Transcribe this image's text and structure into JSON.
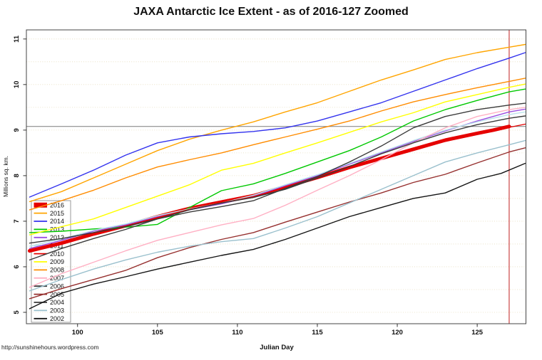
{
  "footer": {
    "url": "http://sunshinehours.wordpress.com"
  },
  "chart_data": {
    "type": "line",
    "title": "JAXA Antarctic Ice Extent - as of 2016-127 Zoomed",
    "xlabel": "Julian Day",
    "ylabel": "Millions sq. km.",
    "xlim": [
      96.8,
      128.05
    ],
    "ylim": [
      4.75,
      11.2
    ],
    "x_ticks": [
      100,
      105,
      110,
      115,
      120,
      125
    ],
    "y_ticks": [
      5,
      6,
      7,
      8,
      9,
      10,
      11
    ],
    "grid": {
      "start": 5,
      "end": 11,
      "step": 0.5,
      "color": "#E6DDBE",
      "style": "dotted",
      "orientation": "horizontal"
    },
    "reference_lines": {
      "horizontal": {
        "value": 9.08,
        "color": "#7A7A7A",
        "meaning": "current 2016 extent"
      },
      "vertical": {
        "value": 127,
        "color": "#CC4444",
        "meaning": "as-of Julian day 127"
      }
    },
    "legend": {
      "position": "left-bottom",
      "box": {
        "x": 44,
        "y": 282,
        "w": 55,
        "h": 171
      },
      "entries": [
        "2016",
        "2015",
        "2014",
        "2013",
        "2012",
        "2011",
        "2010",
        "2009",
        "2008",
        "2007",
        "2006",
        "2005",
        "2004",
        "2003",
        "2002"
      ]
    },
    "series": [
      {
        "name": "2016",
        "color": "#E50000",
        "width": 5,
        "points": [
          [
            97,
            6.35
          ],
          [
            99,
            6.52
          ],
          [
            101,
            6.72
          ],
          [
            103,
            6.9
          ],
          [
            105,
            7.1
          ],
          [
            107,
            7.28
          ],
          [
            109,
            7.42
          ],
          [
            111,
            7.56
          ],
          [
            113,
            7.76
          ],
          [
            115,
            7.96
          ],
          [
            117,
            8.18
          ],
          [
            119,
            8.38
          ],
          [
            121,
            8.58
          ],
          [
            123,
            8.78
          ],
          [
            125,
            8.93
          ],
          [
            126,
            9.0
          ],
          [
            127,
            9.08
          ]
        ]
      },
      {
        "name": "2015",
        "color": "#FFA500",
        "width": 1.4,
        "points": [
          [
            97,
            7.43
          ],
          [
            99,
            7.65
          ],
          [
            101,
            7.95
          ],
          [
            103,
            8.25
          ],
          [
            105,
            8.55
          ],
          [
            107,
            8.8
          ],
          [
            109,
            9.0
          ],
          [
            111,
            9.18
          ],
          [
            113,
            9.4
          ],
          [
            115,
            9.6
          ],
          [
            117,
            9.85
          ],
          [
            119,
            10.1
          ],
          [
            121,
            10.32
          ],
          [
            123,
            10.55
          ],
          [
            125,
            10.7
          ],
          [
            127,
            10.82
          ],
          [
            128,
            10.88
          ]
        ]
      },
      {
        "name": "2014",
        "color": "#3333EE",
        "width": 1.4,
        "points": [
          [
            97,
            7.53
          ],
          [
            99,
            7.82
          ],
          [
            101,
            8.12
          ],
          [
            103,
            8.45
          ],
          [
            105,
            8.72
          ],
          [
            107,
            8.85
          ],
          [
            109,
            8.92
          ],
          [
            111,
            8.97
          ],
          [
            113,
            9.05
          ],
          [
            115,
            9.2
          ],
          [
            117,
            9.4
          ],
          [
            119,
            9.6
          ],
          [
            121,
            9.85
          ],
          [
            123,
            10.1
          ],
          [
            125,
            10.35
          ],
          [
            127,
            10.58
          ],
          [
            128,
            10.7
          ]
        ]
      },
      {
        "name": "2013",
        "color": "#00C800",
        "width": 1.4,
        "points": [
          [
            97,
            6.75
          ],
          [
            99,
            6.78
          ],
          [
            101,
            6.83
          ],
          [
            103,
            6.87
          ],
          [
            105,
            6.93
          ],
          [
            107,
            7.3
          ],
          [
            109,
            7.67
          ],
          [
            111,
            7.82
          ],
          [
            113,
            8.05
          ],
          [
            115,
            8.3
          ],
          [
            117,
            8.55
          ],
          [
            119,
            8.85
          ],
          [
            121,
            9.2
          ],
          [
            123,
            9.45
          ],
          [
            125,
            9.65
          ],
          [
            127,
            9.84
          ],
          [
            128,
            9.9
          ]
        ]
      },
      {
        "name": "2012",
        "color": "#9A4FE0",
        "width": 1.4,
        "points": [
          [
            97,
            6.4
          ],
          [
            99,
            6.58
          ],
          [
            101,
            6.78
          ],
          [
            103,
            6.92
          ],
          [
            105,
            7.1
          ],
          [
            107,
            7.25
          ],
          [
            109,
            7.38
          ],
          [
            111,
            7.55
          ],
          [
            113,
            7.78
          ],
          [
            115,
            8.0
          ],
          [
            117,
            8.25
          ],
          [
            119,
            8.5
          ],
          [
            121,
            8.75
          ],
          [
            123,
            8.98
          ],
          [
            125,
            9.2
          ],
          [
            127,
            9.4
          ],
          [
            128,
            9.46
          ]
        ]
      },
      {
        "name": "2011",
        "color": "#BCE4EC",
        "width": 1.4,
        "points": [
          [
            97,
            6.45
          ],
          [
            99,
            6.61
          ],
          [
            101,
            6.8
          ],
          [
            103,
            6.94
          ],
          [
            105,
            7.12
          ],
          [
            107,
            7.27
          ],
          [
            109,
            7.4
          ],
          [
            111,
            7.57
          ],
          [
            113,
            7.8
          ],
          [
            115,
            8.02
          ],
          [
            117,
            8.27
          ],
          [
            119,
            8.52
          ],
          [
            121,
            8.77
          ],
          [
            123,
            9.0
          ],
          [
            125,
            9.18
          ],
          [
            127,
            9.34
          ],
          [
            128,
            9.4
          ]
        ]
      },
      {
        "name": "2010",
        "color": "#E50000",
        "width": 1.4,
        "points": [
          [
            97,
            6.32
          ],
          [
            99,
            6.5
          ],
          [
            101,
            6.7
          ],
          [
            103,
            6.88
          ],
          [
            105,
            7.08
          ],
          [
            107,
            7.26
          ],
          [
            109,
            7.4
          ],
          [
            111,
            7.54
          ],
          [
            113,
            7.74
          ],
          [
            115,
            7.94
          ],
          [
            117,
            8.16
          ],
          [
            119,
            8.36
          ],
          [
            121,
            8.56
          ],
          [
            123,
            8.76
          ],
          [
            125,
            8.91
          ],
          [
            127,
            9.06
          ],
          [
            128,
            9.13
          ]
        ]
      },
      {
        "name": "2009",
        "color": "#FFFF00",
        "width": 1.4,
        "points": [
          [
            97,
            6.7
          ],
          [
            99,
            6.88
          ],
          [
            101,
            7.05
          ],
          [
            103,
            7.3
          ],
          [
            105,
            7.55
          ],
          [
            107,
            7.8
          ],
          [
            109,
            8.12
          ],
          [
            111,
            8.27
          ],
          [
            113,
            8.5
          ],
          [
            115,
            8.72
          ],
          [
            117,
            8.95
          ],
          [
            119,
            9.18
          ],
          [
            121,
            9.38
          ],
          [
            123,
            9.62
          ],
          [
            125,
            9.78
          ],
          [
            127,
            9.94
          ],
          [
            128,
            10.01
          ]
        ]
      },
      {
        "name": "2008",
        "color": "#FF8C00",
        "width": 1.4,
        "points": [
          [
            97,
            7.25
          ],
          [
            99,
            7.45
          ],
          [
            101,
            7.68
          ],
          [
            103,
            7.95
          ],
          [
            105,
            8.19
          ],
          [
            107,
            8.35
          ],
          [
            109,
            8.5
          ],
          [
            111,
            8.68
          ],
          [
            113,
            8.85
          ],
          [
            115,
            9.02
          ],
          [
            117,
            9.2
          ],
          [
            119,
            9.42
          ],
          [
            121,
            9.62
          ],
          [
            123,
            9.78
          ],
          [
            125,
            9.93
          ],
          [
            127,
            10.07
          ],
          [
            128,
            10.14
          ]
        ]
      },
      {
        "name": "2007",
        "color": "#FFB0C4",
        "width": 1.4,
        "points": [
          [
            97,
            5.55
          ],
          [
            99,
            5.85
          ],
          [
            101,
            6.1
          ],
          [
            103,
            6.35
          ],
          [
            105,
            6.58
          ],
          [
            107,
            6.75
          ],
          [
            109,
            6.92
          ],
          [
            111,
            7.06
          ],
          [
            113,
            7.35
          ],
          [
            115,
            7.68
          ],
          [
            117,
            8.0
          ],
          [
            119,
            8.35
          ],
          [
            121,
            8.72
          ],
          [
            123,
            9.05
          ],
          [
            125,
            9.3
          ],
          [
            127,
            9.45
          ],
          [
            128,
            9.5
          ]
        ]
      },
      {
        "name": "2006",
        "color": "#3A3A3A",
        "width": 1.4,
        "points": [
          [
            97,
            6.52
          ],
          [
            99,
            6.62
          ],
          [
            101,
            6.75
          ],
          [
            103,
            6.88
          ],
          [
            105,
            7.05
          ],
          [
            107,
            7.2
          ],
          [
            109,
            7.32
          ],
          [
            111,
            7.45
          ],
          [
            113,
            7.72
          ],
          [
            115,
            7.98
          ],
          [
            117,
            8.3
          ],
          [
            119,
            8.65
          ],
          [
            121,
            9.05
          ],
          [
            123,
            9.3
          ],
          [
            125,
            9.45
          ],
          [
            127,
            9.55
          ],
          [
            128,
            9.59
          ]
        ]
      },
      {
        "name": "2005",
        "color": "#96302F",
        "width": 1.4,
        "points": [
          [
            97,
            5.3
          ],
          [
            99,
            5.52
          ],
          [
            101,
            5.72
          ],
          [
            103,
            5.92
          ],
          [
            105,
            6.2
          ],
          [
            107,
            6.42
          ],
          [
            109,
            6.6
          ],
          [
            111,
            6.75
          ],
          [
            113,
            6.98
          ],
          [
            115,
            7.2
          ],
          [
            117,
            7.42
          ],
          [
            119,
            7.62
          ],
          [
            121,
            7.85
          ],
          [
            123,
            8.03
          ],
          [
            125,
            8.28
          ],
          [
            127,
            8.52
          ],
          [
            128,
            8.61
          ]
        ]
      },
      {
        "name": "2004",
        "color": "#3A3A3A",
        "width": 1.4,
        "points": [
          [
            97,
            6.15
          ],
          [
            99,
            6.4
          ],
          [
            101,
            6.62
          ],
          [
            103,
            6.82
          ],
          [
            105,
            7.05
          ],
          [
            107,
            7.25
          ],
          [
            109,
            7.4
          ],
          [
            111,
            7.52
          ],
          [
            113,
            7.7
          ],
          [
            115,
            7.95
          ],
          [
            117,
            8.2
          ],
          [
            119,
            8.48
          ],
          [
            121,
            8.72
          ],
          [
            123,
            8.94
          ],
          [
            125,
            9.12
          ],
          [
            127,
            9.26
          ],
          [
            128,
            9.31
          ]
        ]
      },
      {
        "name": "2003",
        "color": "#9AC0CD",
        "width": 1.4,
        "points": [
          [
            97,
            5.47
          ],
          [
            99,
            5.72
          ],
          [
            101,
            5.95
          ],
          [
            103,
            6.15
          ],
          [
            105,
            6.32
          ],
          [
            107,
            6.45
          ],
          [
            109,
            6.55
          ],
          [
            111,
            6.62
          ],
          [
            113,
            6.85
          ],
          [
            115,
            7.1
          ],
          [
            117,
            7.4
          ],
          [
            119,
            7.7
          ],
          [
            121,
            8.0
          ],
          [
            123,
            8.3
          ],
          [
            125,
            8.5
          ],
          [
            127,
            8.68
          ],
          [
            128,
            8.77
          ]
        ]
      },
      {
        "name": "2002",
        "color": "#141414",
        "width": 1.4,
        "points": [
          [
            97,
            5.08
          ],
          [
            99,
            5.42
          ],
          [
            101,
            5.62
          ],
          [
            103,
            5.78
          ],
          [
            105,
            5.95
          ],
          [
            107,
            6.1
          ],
          [
            109,
            6.25
          ],
          [
            111,
            6.38
          ],
          [
            113,
            6.6
          ],
          [
            115,
            6.85
          ],
          [
            117,
            7.1
          ],
          [
            119,
            7.3
          ],
          [
            121,
            7.5
          ],
          [
            123,
            7.62
          ],
          [
            125,
            7.92
          ],
          [
            126.5,
            8.05
          ],
          [
            128,
            8.27
          ]
        ]
      }
    ]
  }
}
